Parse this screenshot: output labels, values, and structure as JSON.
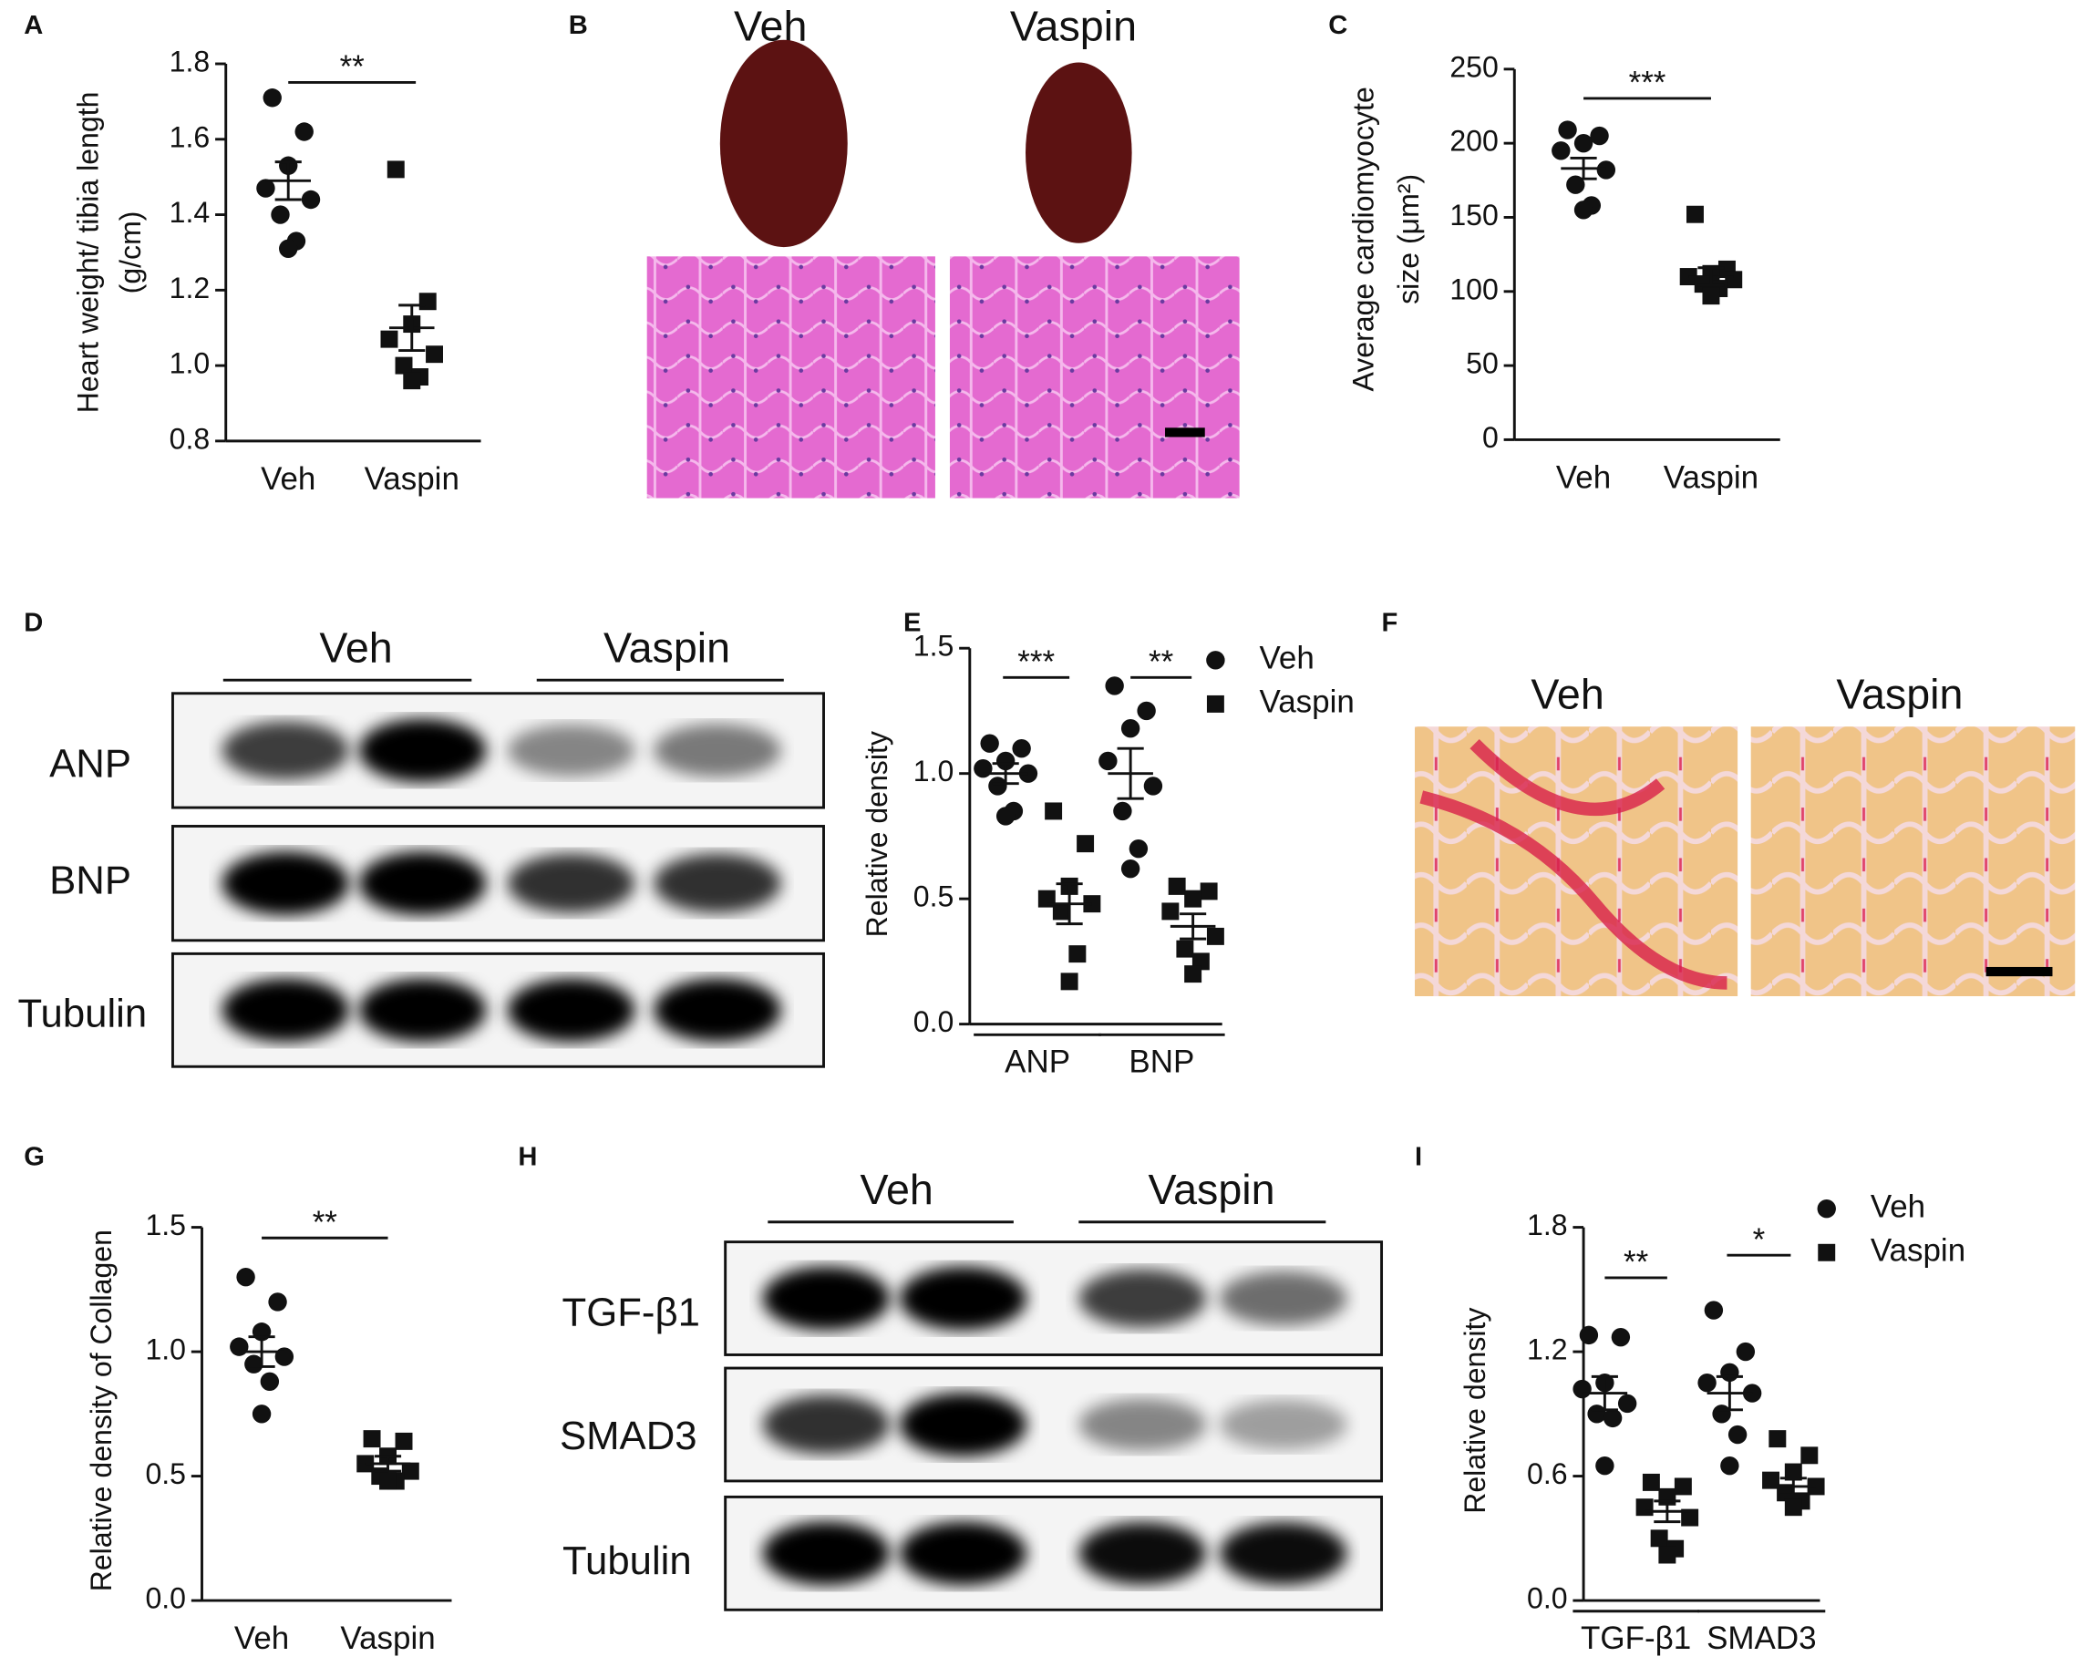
{
  "chart_data": [
    {
      "panel": "A",
      "type": "dot",
      "ylabel": [
        "Heart weight/ tibia length",
        "(g/cm)"
      ],
      "categories": [
        "Veh",
        "Vaspin"
      ],
      "markers": [
        "circle",
        "square"
      ],
      "color": "#111111",
      "values": [
        [
          1.71,
          1.62,
          1.53,
          1.47,
          1.44,
          1.4,
          1.33,
          1.31
        ],
        [
          1.52,
          1.17,
          1.11,
          1.07,
          1.03,
          1.0,
          0.97,
          0.96
        ]
      ],
      "mean": [
        1.49,
        1.1
      ],
      "sem": [
        0.05,
        0.06
      ],
      "significance": "**",
      "ylim": [
        0.8,
        1.8
      ],
      "yticks": [
        0.8,
        {
          "value": 1,
          "label": "1.0"
        },
        1.2,
        1.4,
        1.6,
        1.8
      ]
    },
    {
      "panel": "C",
      "type": "dot",
      "ylabel": [
        "Average cardiomyocyte",
        "size (μm²)"
      ],
      "categories": [
        "Veh",
        "Vaspin"
      ],
      "markers": [
        "circle",
        "square"
      ],
      "color": "#111111",
      "values": [
        [
          209,
          205,
          200,
          195,
          182,
          172,
          158,
          155
        ],
        [
          152,
          115,
          112,
          110,
          108,
          105,
          102,
          97
        ]
      ],
      "mean": [
        183,
        110
      ],
      "sem": [
        7,
        6
      ],
      "significance": "***",
      "ylim": [
        0,
        250
      ],
      "yticks": [
        0,
        50,
        100,
        150,
        200,
        250
      ]
    },
    {
      "panel": "E",
      "type": "dot",
      "ylabel": [
        "Relative density"
      ],
      "categories": [
        "ANP",
        "BNP"
      ],
      "color": "#111111",
      "series": [
        {
          "name": "Veh",
          "marker": "circle",
          "values": [
            [
              1.12,
              1.1,
              1.05,
              1.02,
              1.0,
              0.95,
              0.85,
              0.83
            ],
            [
              1.35,
              1.25,
              1.18,
              1.05,
              0.95,
              0.85,
              0.7,
              0.62
            ]
          ],
          "mean": [
            1.0,
            1.0
          ],
          "sem": [
            0.04,
            0.1
          ]
        },
        {
          "name": "Vaspin",
          "marker": "square",
          "values": [
            [
              0.85,
              0.72,
              0.55,
              0.5,
              0.48,
              0.45,
              0.28,
              0.17
            ],
            [
              0.55,
              0.53,
              0.5,
              0.45,
              0.35,
              0.3,
              0.25,
              0.2
            ]
          ],
          "mean": [
            0.48,
            0.39
          ],
          "sem": [
            0.08,
            0.05
          ]
        }
      ],
      "significance": [
        "***",
        "**"
      ],
      "legend": "right",
      "ylim": [
        0,
        1.5
      ],
      "yticks": [
        {
          "value": 0,
          "label": "0.0"
        },
        0.5,
        {
          "value": 1,
          "label": "1.0"
        },
        1.5
      ]
    },
    {
      "panel": "G",
      "type": "dot",
      "ylabel": [
        "Relative density of Collagen"
      ],
      "categories": [
        "Veh",
        "Vaspin"
      ],
      "markers": [
        "circle",
        "square"
      ],
      "color": "#111111",
      "values": [
        [
          1.3,
          1.2,
          1.08,
          1.02,
          0.98,
          0.95,
          0.88,
          0.75
        ],
        [
          0.65,
          0.64,
          0.58,
          0.55,
          0.52,
          0.5,
          0.48,
          0.48
        ]
      ],
      "mean": [
        1.0,
        0.55
      ],
      "sem": [
        0.06,
        0.03
      ],
      "significance": "**",
      "ylim": [
        0,
        1.5
      ],
      "yticks": [
        {
          "value": 0,
          "label": "0.0"
        },
        0.5,
        {
          "value": 1,
          "label": "1.0"
        },
        1.5
      ]
    },
    {
      "panel": "I",
      "type": "dot",
      "ylabel": [
        "Relative density"
      ],
      "categories": [
        "TGF-β1",
        "SMAD3"
      ],
      "color": "#111111",
      "series": [
        {
          "name": "Veh",
          "marker": "circle",
          "values": [
            [
              1.28,
              1.27,
              1.05,
              1.02,
              0.95,
              0.9,
              0.88,
              0.65
            ],
            [
              1.4,
              1.2,
              1.1,
              1.05,
              1.0,
              0.9,
              0.8,
              0.65
            ]
          ],
          "mean": [
            1.0,
            1.0
          ],
          "sem": [
            0.08,
            0.08
          ]
        },
        {
          "name": "Vaspin",
          "marker": "square",
          "values": [
            [
              0.57,
              0.55,
              0.5,
              0.45,
              0.4,
              0.3,
              0.25,
              0.22
            ],
            [
              0.78,
              0.7,
              0.62,
              0.58,
              0.55,
              0.52,
              0.48,
              0.45
            ]
          ],
          "mean": [
            0.43,
            0.55
          ],
          "sem": [
            0.05,
            0.04
          ]
        }
      ],
      "significance": [
        "**",
        "*"
      ],
      "legend": "right",
      "ylim": [
        0,
        1.8
      ],
      "yticks": [
        {
          "value": 0,
          "label": "0.0"
        },
        0.6,
        1.2,
        1.8
      ]
    }
  ],
  "images": [
    {
      "panel": "B",
      "labels": [
        "Veh",
        "Vaspin"
      ]
    },
    {
      "panel": "D",
      "columns": [
        "Veh",
        "Vaspin"
      ],
      "rows": [
        "ANP",
        "BNP",
        "Tubulin"
      ]
    },
    {
      "panel": "F",
      "labels": [
        "Veh",
        "Vaspin"
      ]
    },
    {
      "panel": "H",
      "columns": [
        "Veh",
        "Vaspin"
      ],
      "rows": [
        "TGF-β1",
        "SMAD3",
        "Tubulin"
      ]
    }
  ]
}
